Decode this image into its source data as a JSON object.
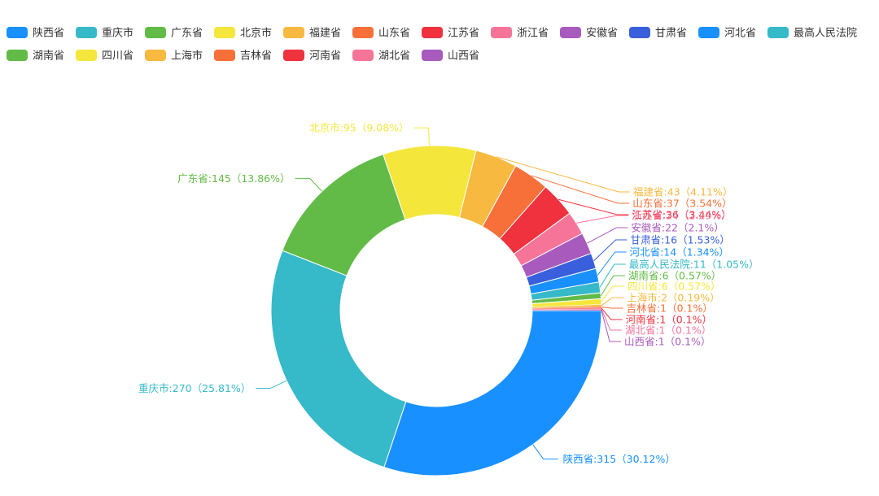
{
  "chart_data": {
    "type": "pie",
    "subtype": "donut",
    "title": "",
    "legend_position": "top",
    "label_style": "outside-with-leader-lines",
    "slices": [
      {
        "name": "陕西省",
        "value": 315,
        "label": "陕西省:315（30.12%）",
        "color": "#1890ff"
      },
      {
        "name": "重庆市",
        "value": 270,
        "label": "重庆市:270（25.81%）",
        "color": "#36b9c9"
      },
      {
        "name": "广东省",
        "value": 145,
        "label": "广东省:145（13.86%）",
        "color": "#62bb47"
      },
      {
        "name": "北京市",
        "value": 95,
        "label": "北京市:95（9.08%）",
        "color": "#f5e63c"
      },
      {
        "name": "福建省",
        "value": 43,
        "label": "福建省:43（4.11%）",
        "color": "#f7b940"
      },
      {
        "name": "山东省",
        "value": 37,
        "label": "山东省:37（3.54%）",
        "color": "#f7703a"
      },
      {
        "name": "江苏省",
        "value": 36,
        "label": "江苏省:36（3.44%）",
        "color": "#f0313e"
      },
      {
        "name": "浙江省",
        "value": 24,
        "label": "浙江省:24（2.29%）",
        "color": "#f77499"
      },
      {
        "name": "安徽省",
        "value": 22,
        "label": "安徽省:22（2.1%）",
        "color": "#a85bbd"
      },
      {
        "name": "甘肃省",
        "value": 16,
        "label": "甘肃省:16（1.53%）",
        "color": "#3a5fdc"
      },
      {
        "name": "河北省",
        "value": 14,
        "label": "河北省:14（1.34%）",
        "color": "#1890ff"
      },
      {
        "name": "最高人民法院",
        "value": 11,
        "label": "最高人民法院:11（1.05%）",
        "color": "#36b9c9"
      },
      {
        "name": "湖南省",
        "value": 6,
        "label": "湖南省:6（0.57%）",
        "color": "#62bb47"
      },
      {
        "name": "四川省",
        "value": 6,
        "label": "四川省:6（0.57%）",
        "color": "#f5e63c"
      },
      {
        "name": "上海市",
        "value": 2,
        "label": "上海市:2（0.19%）",
        "color": "#f7b940"
      },
      {
        "name": "吉林省",
        "value": 1,
        "label": "吉林省:1（0.1%）",
        "color": "#f7703a"
      },
      {
        "name": "河南省",
        "value": 1,
        "label": "河南省:1（0.1%）",
        "color": "#f0313e"
      },
      {
        "name": "湖北省",
        "value": 1,
        "label": "湖北省:1（0.1%）",
        "color": "#f77499"
      },
      {
        "name": "山西省",
        "value": 1,
        "label": "山西省:1（0.1%）",
        "color": "#a85bbd"
      }
    ]
  }
}
